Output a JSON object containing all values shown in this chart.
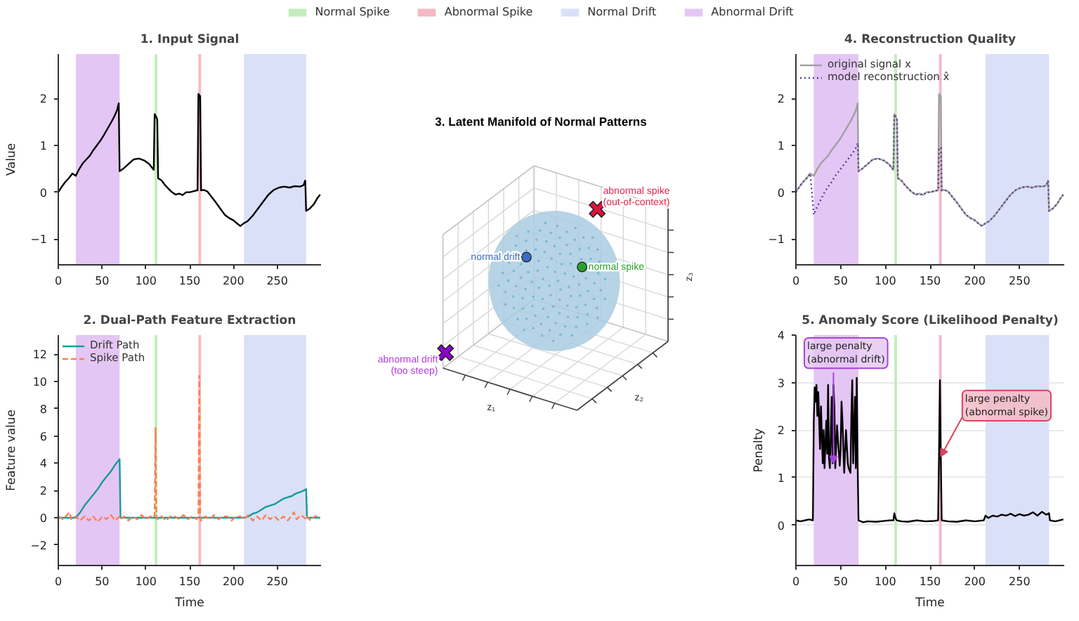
{
  "chart_data": [
    {
      "type": "line",
      "title": "1. Input Signal",
      "ylabel": "Value",
      "x": [
        0,
        4,
        8,
        12,
        16,
        20,
        24,
        28,
        32,
        36,
        40,
        44,
        48,
        52,
        56,
        60,
        64,
        67,
        69,
        70,
        74,
        80,
        86,
        92,
        98,
        104,
        108,
        109,
        110,
        112,
        113,
        114,
        118,
        122,
        126,
        130,
        134,
        138,
        142,
        146,
        150,
        154,
        158,
        159,
        160,
        162,
        163,
        166,
        170,
        175,
        180,
        185,
        190,
        195,
        200,
        205,
        208,
        212,
        216,
        222,
        228,
        234,
        240,
        246,
        252,
        258,
        264,
        270,
        276,
        280,
        282,
        283,
        287,
        292,
        296,
        299
      ],
      "series": [
        {
          "color": "#000000",
          "values": [
            0.0,
            0.12,
            0.22,
            0.3,
            0.4,
            0.35,
            0.5,
            0.62,
            0.7,
            0.78,
            0.9,
            1.0,
            1.1,
            1.22,
            1.35,
            1.48,
            1.62,
            1.75,
            1.9,
            0.45,
            0.5,
            0.6,
            0.7,
            0.72,
            0.68,
            0.6,
            0.5,
            0.48,
            1.67,
            1.6,
            1.55,
            0.3,
            0.25,
            0.15,
            0.07,
            0.0,
            -0.05,
            -0.03,
            -0.06,
            0.0,
            0.0,
            0.02,
            0.04,
            0.04,
            2.1,
            2.05,
            0.04,
            0.05,
            0.02,
            -0.1,
            -0.22,
            -0.35,
            -0.48,
            -0.55,
            -0.6,
            -0.68,
            -0.72,
            -0.66,
            -0.62,
            -0.5,
            -0.35,
            -0.2,
            -0.05,
            0.05,
            0.1,
            0.12,
            0.1,
            0.13,
            0.12,
            0.15,
            0.25,
            -0.4,
            -0.35,
            -0.25,
            -0.12,
            -0.05
          ]
        }
      ],
      "xlim": [
        0,
        300
      ],
      "ylim": [
        -1.55,
        2.95
      ],
      "xticks": [
        0,
        50,
        100,
        150,
        200,
        250
      ],
      "yticks": [
        -1,
        0,
        1,
        2
      ],
      "bands": [
        {
          "axis": "x",
          "from": 110,
          "to": 113,
          "label": "Normal Spike",
          "color": "#c3edbc"
        },
        {
          "axis": "x",
          "from": 160,
          "to": 163,
          "label": "Abnormal Spike",
          "color": "#f6b8c3"
        },
        {
          "axis": "x",
          "from": 212,
          "to": 283,
          "label": "Normal Drift",
          "color": "#d9e0f8"
        },
        {
          "axis": "x",
          "from": 20,
          "to": 70,
          "label": "Abnormal Drift",
          "color": "#e4c6f4"
        }
      ],
      "legend": "top"
    },
    {
      "type": "line",
      "title": "2. Dual-Path Feature Extraction",
      "xlabel": "Time",
      "ylabel": "Feature value",
      "x": [
        0,
        5,
        10,
        13,
        15,
        20,
        25,
        30,
        35,
        40,
        45,
        50,
        55,
        60,
        65,
        70,
        71,
        75,
        80,
        85,
        90,
        95,
        100,
        105,
        109,
        110,
        111,
        112,
        113,
        118,
        123,
        128,
        133,
        138,
        143,
        148,
        153,
        158,
        160,
        161,
        162,
        163,
        168,
        173,
        178,
        183,
        188,
        193,
        198,
        203,
        208,
        212,
        217,
        222,
        227,
        232,
        237,
        242,
        247,
        252,
        257,
        262,
        267,
        269,
        272,
        277,
        283,
        284,
        288,
        293,
        299
      ],
      "series": [
        {
          "name": "Drift Path",
          "color": "#17999b",
          "line_style": "solid",
          "values": [
            0,
            0,
            0,
            0,
            0,
            0,
            0.4,
            0.9,
            1.3,
            1.7,
            2.1,
            2.6,
            3.0,
            3.4,
            3.9,
            4.3,
            0,
            0,
            0,
            0,
            0,
            0,
            0,
            0,
            0,
            0,
            0,
            0,
            0,
            0,
            0,
            0,
            0,
            0,
            0,
            0,
            0,
            0,
            0,
            0,
            0,
            0,
            0,
            0,
            0,
            0,
            0,
            0,
            0,
            0,
            0,
            0,
            0.1,
            0.3,
            0.4,
            0.6,
            0.8,
            0.9,
            1.0,
            1.2,
            1.4,
            1.5,
            1.6,
            1.7,
            1.8,
            1.9,
            2.1,
            0,
            0,
            0,
            0
          ]
        },
        {
          "name": "Spike Path",
          "color": "#ff7f50",
          "line_style": "dashed",
          "values": [
            0.1,
            -0.1,
            0.2,
            0.4,
            -0.1,
            0.1,
            -0.2,
            0.1,
            -0.2,
            0.1,
            -0.3,
            0.1,
            -0.1,
            0.2,
            -0.2,
            0.1,
            -0.1,
            0.1,
            -0.2,
            0.1,
            -0.1,
            0.2,
            -0.1,
            0.1,
            0.0,
            0.2,
            6.6,
            0.1,
            -0.1,
            0.1,
            -0.2,
            0.1,
            0.1,
            -0.1,
            0.2,
            -0.1,
            0.1,
            -0.1,
            0.1,
            10.4,
            0.1,
            -0.2,
            0.1,
            -0.1,
            0.2,
            -0.1,
            0.1,
            0.1,
            -0.2,
            0.1,
            0.1,
            -0.1,
            0.2,
            -0.2,
            0.1,
            -0.2,
            0.2,
            -0.1,
            0.1,
            -0.2,
            0.1,
            -0.2,
            0.2,
            0.4,
            -0.1,
            0.2,
            -0.1,
            0.1,
            -0.2,
            0.1,
            0.1
          ]
        }
      ],
      "xlim": [
        0,
        300
      ],
      "ylim": [
        -3.5,
        13.4
      ],
      "xticks": [
        0,
        50,
        100,
        150,
        200,
        250
      ],
      "yticks": [
        -2,
        0,
        2,
        4,
        6,
        8,
        10,
        12
      ],
      "bands": [
        {
          "axis": "x",
          "from": 110,
          "to": 113,
          "color": "#c3edbc"
        },
        {
          "axis": "x",
          "from": 160,
          "to": 163,
          "color": "#f6b8c3"
        },
        {
          "axis": "x",
          "from": 212,
          "to": 283,
          "color": "#d9e0f8"
        },
        {
          "axis": "x",
          "from": 20,
          "to": 70,
          "color": "#e4c6f4"
        }
      ],
      "legend": "top left"
    },
    {
      "type": "other",
      "title": "3. Latent Manifold of Normal Patterns",
      "annotations": [
        "normal drift",
        "normal spike",
        "abnormal spike\n(out-of-context)",
        "abnormal drift\n(too steep)",
        "z₁",
        "z₂",
        "z₃"
      ]
    },
    {
      "type": "line",
      "title": "4. Reconstruction Quality",
      "x": [
        0,
        4,
        8,
        12,
        16,
        20,
        24,
        28,
        32,
        36,
        40,
        44,
        48,
        52,
        56,
        60,
        64,
        67,
        69,
        70,
        74,
        80,
        86,
        92,
        98,
        104,
        108,
        109,
        110,
        112,
        113,
        114,
        118,
        122,
        126,
        130,
        134,
        138,
        142,
        146,
        150,
        154,
        158,
        159,
        160,
        162,
        163,
        166,
        170,
        175,
        180,
        185,
        190,
        195,
        200,
        205,
        208,
        212,
        216,
        222,
        228,
        234,
        240,
        246,
        252,
        258,
        264,
        270,
        276,
        280,
        282,
        283,
        287,
        292,
        296,
        299
      ],
      "series": [
        {
          "name": "original signal x",
          "color": "#a0a0a0",
          "line_style": "solid",
          "values": [
            0.0,
            0.12,
            0.22,
            0.3,
            0.4,
            0.35,
            0.5,
            0.62,
            0.7,
            0.78,
            0.9,
            1.0,
            1.1,
            1.22,
            1.35,
            1.48,
            1.62,
            1.75,
            1.9,
            0.45,
            0.5,
            0.6,
            0.7,
            0.72,
            0.68,
            0.6,
            0.5,
            0.48,
            1.67,
            1.6,
            1.55,
            0.3,
            0.25,
            0.15,
            0.07,
            0.0,
            -0.05,
            -0.03,
            -0.06,
            0.0,
            0.0,
            0.02,
            0.04,
            0.04,
            2.1,
            2.05,
            0.04,
            0.05,
            0.02,
            -0.1,
            -0.22,
            -0.35,
            -0.48,
            -0.55,
            -0.6,
            -0.68,
            -0.72,
            -0.66,
            -0.62,
            -0.5,
            -0.35,
            -0.2,
            -0.05,
            0.05,
            0.1,
            0.12,
            0.1,
            0.13,
            0.12,
            0.15,
            0.25,
            -0.4,
            -0.35,
            -0.25,
            -0.12,
            -0.05
          ]
        },
        {
          "name": "model reconstruction x̂",
          "color": "#5b3a94",
          "line_style": "dotted",
          "values": [
            0.0,
            0.12,
            0.22,
            0.3,
            0.4,
            -0.48,
            -0.3,
            -0.15,
            0.0,
            0.12,
            0.22,
            0.35,
            0.45,
            0.55,
            0.65,
            0.75,
            0.85,
            0.95,
            1.05,
            0.45,
            0.5,
            0.6,
            0.7,
            0.72,
            0.68,
            0.6,
            0.5,
            0.48,
            1.67,
            1.6,
            1.55,
            0.3,
            0.25,
            0.15,
            0.07,
            0.0,
            -0.05,
            -0.03,
            -0.06,
            0.0,
            0.0,
            0.02,
            0.04,
            0.04,
            0.95,
            0.95,
            0.04,
            0.05,
            0.02,
            -0.1,
            -0.22,
            -0.35,
            -0.48,
            -0.55,
            -0.6,
            -0.68,
            -0.72,
            -0.66,
            -0.62,
            -0.5,
            -0.35,
            -0.2,
            -0.05,
            0.05,
            0.1,
            0.12,
            0.1,
            0.13,
            0.12,
            0.15,
            0.25,
            -0.4,
            -0.35,
            -0.25,
            -0.12,
            -0.05
          ]
        }
      ],
      "xlim": [
        0,
        300
      ],
      "ylim": [
        -1.55,
        2.95
      ],
      "xticks": [
        0,
        50,
        100,
        150,
        200,
        250
      ],
      "yticks": [
        -1,
        0,
        1,
        2
      ],
      "bands": [
        {
          "axis": "x",
          "from": 110,
          "to": 113,
          "color": "#c3edbc"
        },
        {
          "axis": "x",
          "from": 160,
          "to": 163,
          "color": "#f6b8c3"
        },
        {
          "axis": "x",
          "from": 212,
          "to": 283,
          "color": "#d9e0f8"
        },
        {
          "axis": "x",
          "from": 20,
          "to": 70,
          "color": "#e4c6f4"
        }
      ],
      "legend": "top left"
    },
    {
      "type": "line",
      "title": "5. Anomaly Score (Likelihood Penalty)",
      "xlabel": "Time",
      "ylabel": "Penalty",
      "x": [
        0,
        5,
        10,
        15,
        19,
        20,
        21,
        22,
        23,
        24,
        25,
        27,
        28,
        30,
        31,
        32,
        34,
        35,
        36,
        37,
        38,
        40,
        41,
        42,
        43,
        44,
        46,
        47,
        49,
        50,
        51,
        52,
        54,
        56,
        58,
        59,
        61,
        62,
        63,
        64,
        66,
        67,
        68,
        69,
        70,
        75,
        80,
        90,
        100,
        105,
        109,
        110,
        111,
        112,
        113,
        118,
        125,
        135,
        145,
        155,
        159,
        160,
        161,
        162,
        163,
        170,
        180,
        190,
        200,
        205,
        210,
        212,
        215,
        220,
        225,
        230,
        235,
        240,
        245,
        250,
        255,
        260,
        265,
        270,
        275,
        280,
        283,
        284,
        290,
        299
      ],
      "series": [
        {
          "color": "#000000",
          "values": [
            0.1,
            0.08,
            0.1,
            0.12,
            0.1,
            2.2,
            2.9,
            2.6,
            2.95,
            2.3,
            2.8,
            1.6,
            2.5,
            1.3,
            2.0,
            1.2,
            2.2,
            1.5,
            2.95,
            1.4,
            1.2,
            2.7,
            1.3,
            2.95,
            2.5,
            1.2,
            2.1,
            1.8,
            1.25,
            1.6,
            2.6,
            2.2,
            1.1,
            2.0,
            1.3,
            1.2,
            1.1,
            2.3,
            3.05,
            1.3,
            2.7,
            1.2,
            3.1,
            1.3,
            0.1,
            0.06,
            0.08,
            0.07,
            0.09,
            0.1,
            0.1,
            0.25,
            0.18,
            0.12,
            0.1,
            0.08,
            0.07,
            0.1,
            0.08,
            0.09,
            0.1,
            1.5,
            3.05,
            1.4,
            0.1,
            0.08,
            0.07,
            0.1,
            0.08,
            0.09,
            0.1,
            0.2,
            0.15,
            0.2,
            0.18,
            0.22,
            0.2,
            0.24,
            0.19,
            0.23,
            0.2,
            0.22,
            0.27,
            0.2,
            0.28,
            0.22,
            0.25,
            0.1,
            0.08,
            0.12
          ]
        }
      ],
      "xlim": [
        0,
        300
      ],
      "ylim": [
        -0.85,
        4
      ],
      "xticks": [
        0,
        50,
        100,
        150,
        200,
        250
      ],
      "yticks": [
        0,
        1,
        2,
        3,
        4
      ],
      "grid": "y",
      "bands": [
        {
          "axis": "x",
          "from": 110,
          "to": 113,
          "color": "#c3edbc"
        },
        {
          "axis": "x",
          "from": 160,
          "to": 163,
          "color": "#f6b8c3"
        },
        {
          "axis": "x",
          "from": 212,
          "to": 283,
          "color": "#d9e0f8"
        },
        {
          "axis": "x",
          "from": 20,
          "to": 70,
          "color": "#e4c6f4"
        }
      ],
      "annotations": [
        {
          "text": "large penalty\n(abnormal drift)",
          "x": 42,
          "y": 1.3
        },
        {
          "text": "large penalty\n(abnormal spike)",
          "x": 162,
          "y": 1.45
        }
      ]
    }
  ]
}
